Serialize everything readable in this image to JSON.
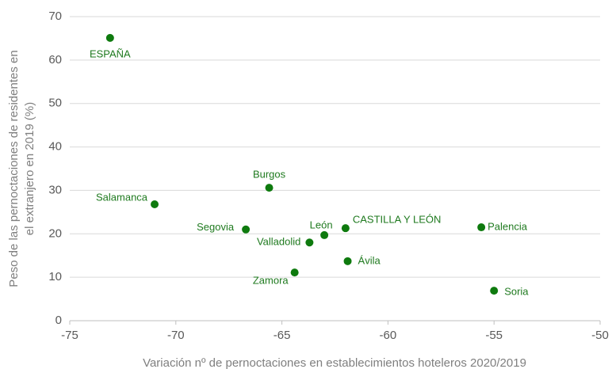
{
  "chart_data": {
    "type": "scatter",
    "x_label": "Variación nº de pernoctaciones en establecimientos hoteleros 2020/2019",
    "y_label": [
      "Peso de las pernoctaciones de residentes en",
      "el extranjero en 2019 (%)"
    ],
    "labels": [
      "ESPAÑA",
      "Salamanca",
      "Burgos",
      "Segovia",
      "Valladolid",
      "León",
      "CASTILLA Y LEÓN",
      "Zamora",
      "Ávila",
      "Palencia",
      "Soria"
    ],
    "x": [
      -73.1,
      -71.0,
      -65.6,
      -66.7,
      -63.7,
      -63.0,
      -62.0,
      -64.4,
      -61.9,
      -55.6,
      -55.0
    ],
    "values": [
      65.1,
      26.8,
      30.6,
      21.0,
      18.0,
      19.7,
      21.3,
      11.1,
      13.7,
      21.5,
      6.9
    ],
    "color": "#0e7a0e",
    "xlim": [
      -75,
      -50
    ],
    "xticks": [
      -75,
      -70,
      -65,
      -60,
      -55,
      -50
    ],
    "ylim": [
      0,
      70
    ],
    "yticks": [
      0,
      10,
      20,
      30,
      40,
      50,
      60,
      70
    ],
    "grid": true
  }
}
